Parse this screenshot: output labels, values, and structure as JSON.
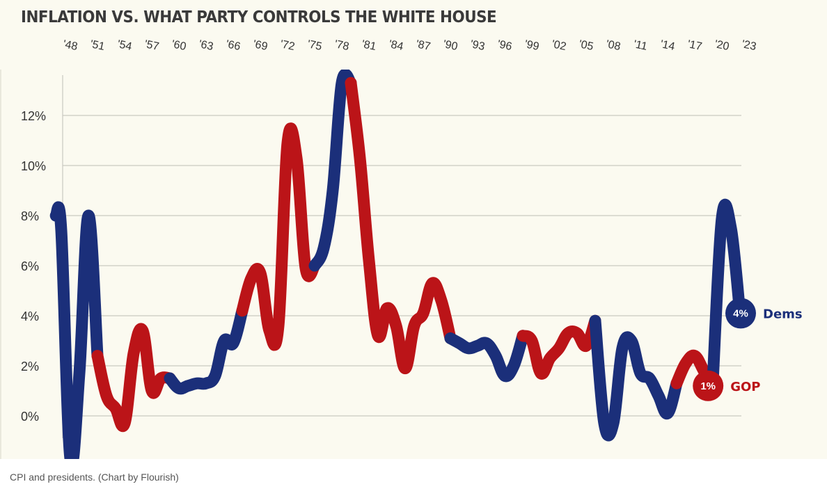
{
  "chart_data": {
    "type": "line",
    "title": "INFLATION VS. WHAT PARTY CONTROLS THE WHITE HOUSE",
    "ylim": [
      -1.6,
      13.5
    ],
    "xlim": [
      1948,
      2023
    ],
    "y_ticks": [
      0,
      2,
      4,
      6,
      8,
      10,
      12
    ],
    "y_tick_labels": [
      "0%",
      "2%",
      "4%",
      "6%",
      "8%",
      "10%",
      "12%"
    ],
    "x_ticks": [
      1948,
      1951,
      1954,
      1957,
      1960,
      1963,
      1966,
      1969,
      1972,
      1975,
      1978,
      1981,
      1984,
      1987,
      1990,
      1993,
      1996,
      1999,
      2002,
      2005,
      2008,
      2011,
      2014,
      2017,
      2020,
      2023
    ],
    "x_tick_labels": [
      "'48",
      "'51",
      "'54",
      "'57",
      "'60",
      "'63",
      "'66",
      "'69",
      "'72",
      "'75",
      "'78",
      "'81",
      "'84",
      "'87",
      "'90",
      "'93",
      "'96",
      "'99",
      "'02",
      "'05",
      "'08",
      "'11",
      "'14",
      "'17",
      "'20",
      "'23"
    ],
    "grid": true,
    "colors": {
      "dem": "#1b2f7a",
      "gop": "#bb1418"
    },
    "segments": [
      {
        "party": "dem",
        "x": [
          1947.4,
          1948,
          1949,
          1950,
          1951,
          1952
        ],
        "y": [
          8.0,
          7.4,
          -1.7,
          1.7,
          8.0,
          2.4
        ]
      },
      {
        "party": "gop",
        "x": [
          1952,
          1953,
          1954,
          1955,
          1956,
          1957,
          1958,
          1959,
          1960
        ],
        "y": [
          2.4,
          0.8,
          0.3,
          -0.3,
          2.5,
          3.4,
          1.0,
          1.5,
          1.5
        ]
      },
      {
        "party": "dem",
        "x": [
          1960,
          1961,
          1962,
          1963,
          1964,
          1965,
          1966,
          1967,
          1968
        ],
        "y": [
          1.5,
          1.1,
          1.2,
          1.3,
          1.3,
          1.6,
          3.0,
          2.9,
          4.2
        ]
      },
      {
        "party": "gop",
        "x": [
          1968,
          1969,
          1970,
          1971,
          1972,
          1973,
          1974,
          1975,
          1976
        ],
        "y": [
          4.2,
          5.5,
          5.7,
          3.4,
          3.6,
          10.9,
          10.3,
          5.9,
          6.0
        ]
      },
      {
        "party": "dem",
        "x": [
          1976,
          1977,
          1978,
          1979,
          1980
        ],
        "y": [
          6.0,
          6.7,
          9.0,
          13.3,
          13.3
        ]
      },
      {
        "party": "gop",
        "x": [
          1980,
          1981,
          1982,
          1983,
          1984,
          1985,
          1986,
          1987,
          1988,
          1989,
          1990,
          1991
        ],
        "y": [
          13.3,
          10.3,
          6.2,
          3.2,
          4.3,
          3.6,
          1.9,
          3.6,
          4.1,
          5.3,
          4.6,
          3.1
        ]
      },
      {
        "party": "dem",
        "x": [
          1991,
          1992,
          1993,
          1994,
          1995,
          1996,
          1997,
          1998,
          1999
        ],
        "y": [
          3.1,
          2.9,
          2.7,
          2.8,
          2.9,
          2.4,
          1.6,
          2.0,
          3.2
        ]
      },
      {
        "party": "gop",
        "x": [
          1999,
          2000,
          2001,
          2002,
          2003,
          2004,
          2005,
          2006,
          2007
        ],
        "y": [
          3.2,
          3.0,
          1.7,
          2.3,
          2.7,
          3.3,
          3.3,
          2.8,
          3.8
        ]
      },
      {
        "party": "dem",
        "x": [
          2007,
          2008,
          2009,
          2010,
          2011,
          2012,
          2013,
          2014,
          2015,
          2016
        ],
        "y": [
          3.8,
          -0.3,
          -0.3,
          2.7,
          3.0,
          1.7,
          1.5,
          0.8,
          0.1,
          1.3
        ]
      },
      {
        "party": "gop",
        "x": [
          2016,
          2017,
          2018,
          2019,
          2020
        ],
        "y": [
          1.3,
          2.1,
          2.4,
          1.8,
          1.2
        ]
      },
      {
        "party": "dem",
        "x": [
          2020,
          2021,
          2022,
          2023
        ],
        "y": [
          1.4,
          7.9,
          7.5,
          4.1
        ]
      }
    ],
    "end_labels": [
      {
        "party": "dem",
        "x": 2023,
        "y": 4.1,
        "value_label": "4%",
        "series_label": "Dems"
      },
      {
        "party": "gop",
        "x": 2019.4,
        "y": 1.2,
        "value_label": "1%",
        "series_label": "GOP"
      }
    ]
  },
  "caption": "CPI and presidents. (Chart by Flourish)"
}
